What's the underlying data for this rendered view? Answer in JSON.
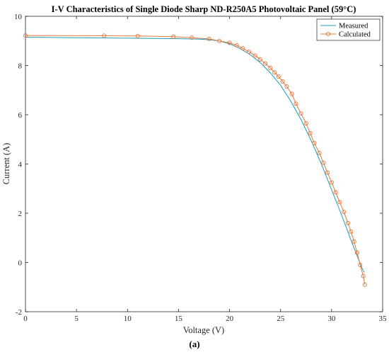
{
  "chart_data": {
    "type": "line",
    "title": "I-V Characteristics of Single Diode Sharp ND-R250A5 Photovoltaic Panel (59°C)",
    "xlabel": "Voltage (V)",
    "ylabel": "Current (A)",
    "xlim": [
      0,
      35
    ],
    "ylim": [
      -2,
      10
    ],
    "xticks": [
      0,
      5,
      10,
      15,
      20,
      25,
      30,
      35
    ],
    "yticks": [
      -2,
      0,
      2,
      4,
      6,
      8,
      10
    ],
    "grid": false,
    "legend_position": "top-right",
    "series": [
      {
        "name": "Measured",
        "color": "#1f9bb5",
        "marker": "none",
        "x": [
          0,
          5,
          10,
          15,
          17,
          18,
          19,
          20,
          21,
          22,
          23,
          24,
          25,
          26,
          27,
          28,
          29,
          30,
          31,
          32,
          33,
          33.2
        ],
        "y": [
          9.15,
          9.13,
          9.11,
          9.09,
          9.07,
          9.05,
          9.0,
          8.88,
          8.7,
          8.45,
          8.12,
          7.7,
          7.2,
          6.55,
          5.8,
          4.95,
          4.0,
          2.95,
          1.9,
          0.8,
          -0.25,
          -0.4
        ]
      },
      {
        "name": "Calculated",
        "color": "#e3783e",
        "marker": "circle",
        "x": [
          0,
          7.7,
          11,
          14.5,
          16.3,
          18,
          19,
          20,
          20.7,
          21.3,
          21.9,
          22.5,
          23,
          23.5,
          24,
          24.4,
          24.8,
          25.2,
          25.6,
          26.1,
          26.5,
          27,
          27.5,
          27.9,
          28.3,
          28.8,
          29.2,
          29.6,
          30,
          30.4,
          30.8,
          31.2,
          31.6,
          31.9,
          32.2,
          32.5,
          32.8,
          33.1,
          33.25
        ],
        "y": [
          9.22,
          9.21,
          9.2,
          9.17,
          9.13,
          9.08,
          9.0,
          8.92,
          8.82,
          8.7,
          8.56,
          8.4,
          8.25,
          8.08,
          7.9,
          7.72,
          7.55,
          7.35,
          7.15,
          6.85,
          6.45,
          6.05,
          5.65,
          5.25,
          4.85,
          4.45,
          4.05,
          3.65,
          3.25,
          2.85,
          2.45,
          2.05,
          1.6,
          1.25,
          0.85,
          0.4,
          -0.1,
          -0.55,
          -0.9
        ]
      }
    ]
  },
  "caption": "(a)"
}
